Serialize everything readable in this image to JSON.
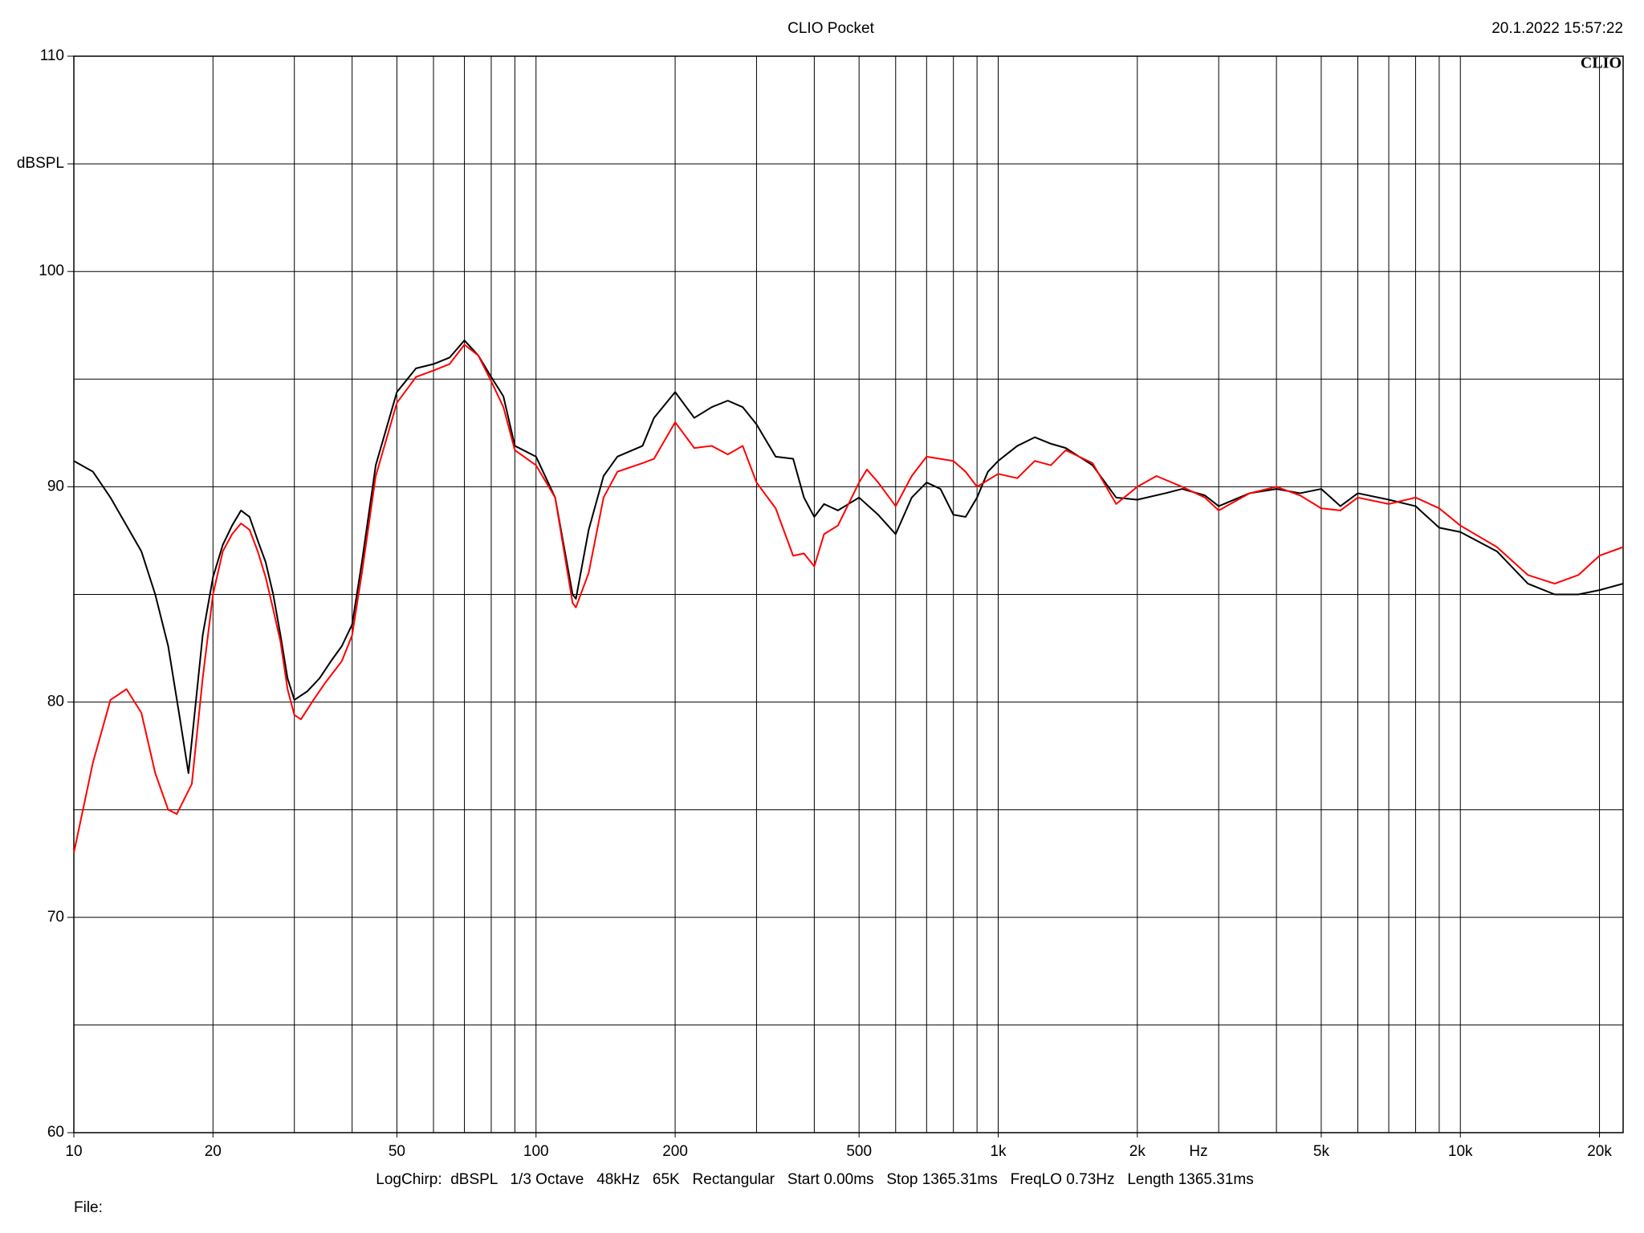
{
  "chart_data": {
    "type": "line",
    "title": "CLIO Pocket",
    "timestamp": "20.1.2022 15:57:22",
    "logo": "CLIO",
    "x_label": "Hz",
    "footer": "LogChirp:  dBSPL   1/3 Octave   48kHz   65K   Rectangular   Start 0.00ms   Stop 1365.31ms   FreqLO 0.73Hz   Length 1365.31ms",
    "file_label": "File:",
    "x_log": true,
    "grid": true,
    "xlim": [
      10,
      22500
    ],
    "ylim": [
      60,
      110
    ],
    "xticks": [
      10,
      20,
      50,
      100,
      200,
      500,
      {
        "value": 1000,
        "label": "1k"
      },
      {
        "value": 2000,
        "label": "2k"
      },
      {
        "value": 5000,
        "label": "5k"
      },
      {
        "value": 10000,
        "label": "10k"
      },
      {
        "value": 20000,
        "label": "20k"
      }
    ],
    "x_minor_grid": [
      30,
      40,
      60,
      70,
      80,
      90,
      300,
      400,
      600,
      700,
      800,
      900,
      3000,
      4000,
      6000,
      7000,
      8000,
      9000
    ],
    "yticks": [
      60,
      70,
      80,
      90,
      100,
      {
        "value": 105,
        "label": "dBSPL"
      },
      110
    ],
    "y_minor_grid": [
      65,
      75,
      85,
      95
    ],
    "series": [
      {
        "color": "#000000",
        "x": [
          10,
          11,
          12,
          13,
          14,
          15,
          16,
          17,
          17.7,
          18,
          19,
          20,
          21,
          22,
          23,
          24,
          25,
          26,
          27,
          28,
          29,
          30,
          32,
          34,
          36,
          38,
          40,
          42,
          45,
          50,
          55,
          60,
          65,
          70,
          75,
          80,
          85,
          90,
          100,
          110,
          120,
          122,
          130,
          140,
          150,
          170,
          180,
          200,
          220,
          240,
          260,
          280,
          300,
          330,
          360,
          380,
          400,
          420,
          450,
          500,
          550,
          600,
          650,
          700,
          750,
          800,
          850,
          900,
          950,
          1000,
          1100,
          1200,
          1300,
          1400,
          1600,
          1800,
          2000,
          2300,
          2500,
          2800,
          3000,
          3500,
          4000,
          4500,
          5000,
          5500,
          6000,
          7000,
          8000,
          9000,
          10000,
          12000,
          14000,
          16000,
          18000,
          20000,
          22500
        ],
        "values": [
          91.2,
          90.7,
          89.5,
          88.2,
          87.0,
          85.0,
          82.6,
          79.1,
          76.7,
          78.2,
          83.1,
          85.8,
          87.3,
          88.2,
          88.9,
          88.6,
          87.5,
          86.5,
          85.0,
          83.1,
          81.1,
          80.1,
          80.5,
          81.1,
          81.9,
          82.6,
          83.6,
          86.5,
          91.0,
          94.4,
          95.5,
          95.7,
          96.0,
          96.8,
          96.1,
          95.1,
          94.2,
          91.9,
          91.4,
          89.5,
          85.0,
          84.8,
          88.0,
          90.5,
          91.4,
          91.9,
          93.2,
          94.4,
          93.2,
          93.7,
          94.0,
          93.7,
          92.9,
          91.4,
          91.3,
          89.5,
          88.6,
          89.2,
          88.9,
          89.5,
          88.7,
          87.8,
          89.5,
          90.2,
          89.9,
          88.7,
          88.6,
          89.5,
          90.7,
          91.2,
          91.9,
          92.3,
          92.0,
          91.8,
          91.0,
          89.5,
          89.4,
          89.7,
          89.9,
          89.6,
          89.1,
          89.7,
          89.9,
          89.7,
          89.9,
          89.1,
          89.7,
          89.4,
          89.1,
          88.1,
          87.9,
          87.0,
          85.5,
          85.0,
          85.0,
          85.2,
          85.5
        ]
      },
      {
        "color": "#ff0000",
        "x": [
          10,
          11,
          12,
          13,
          14,
          15,
          16,
          16.7,
          18,
          19,
          20,
          21,
          22,
          23,
          24,
          25,
          26,
          27,
          28,
          29,
          30,
          31,
          33,
          35,
          38,
          40,
          42,
          45,
          50,
          55,
          60,
          65,
          70,
          75,
          80,
          85,
          90,
          100,
          110,
          120,
          122,
          130,
          140,
          150,
          170,
          180,
          200,
          220,
          240,
          260,
          280,
          300,
          330,
          360,
          380,
          400,
          420,
          450,
          500,
          520,
          550,
          600,
          650,
          700,
          800,
          850,
          900,
          1000,
          1100,
          1200,
          1300,
          1400,
          1600,
          1800,
          2000,
          2200,
          2500,
          2800,
          3000,
          3500,
          4000,
          4500,
          5000,
          5500,
          6000,
          7000,
          8000,
          9000,
          10000,
          12000,
          14000,
          16000,
          18000,
          20000,
          22500
        ],
        "values": [
          73.0,
          77.2,
          80.1,
          80.6,
          79.5,
          76.7,
          75.0,
          74.8,
          76.2,
          81.1,
          85.0,
          87.0,
          87.8,
          88.3,
          88.0,
          87.0,
          85.8,
          84.3,
          82.8,
          80.6,
          79.4,
          79.2,
          80.1,
          80.9,
          81.9,
          83.1,
          86.0,
          90.5,
          93.9,
          95.1,
          95.4,
          95.7,
          96.6,
          96.1,
          94.9,
          93.7,
          91.7,
          91.0,
          89.5,
          84.6,
          84.4,
          86.0,
          89.5,
          90.7,
          91.1,
          91.3,
          93.0,
          91.8,
          91.9,
          91.5,
          91.9,
          90.2,
          89.0,
          86.8,
          86.9,
          86.3,
          87.8,
          88.2,
          90.2,
          90.8,
          90.2,
          89.1,
          90.5,
          91.4,
          91.2,
          90.7,
          90.0,
          90.6,
          90.4,
          91.2,
          91.0,
          91.7,
          91.1,
          89.2,
          90.0,
          90.5,
          90.0,
          89.5,
          88.9,
          89.7,
          90.0,
          89.6,
          89.0,
          88.9,
          89.5,
          89.2,
          89.5,
          89.0,
          88.2,
          87.2,
          85.9,
          85.5,
          85.9,
          86.8,
          87.2
        ]
      }
    ]
  }
}
